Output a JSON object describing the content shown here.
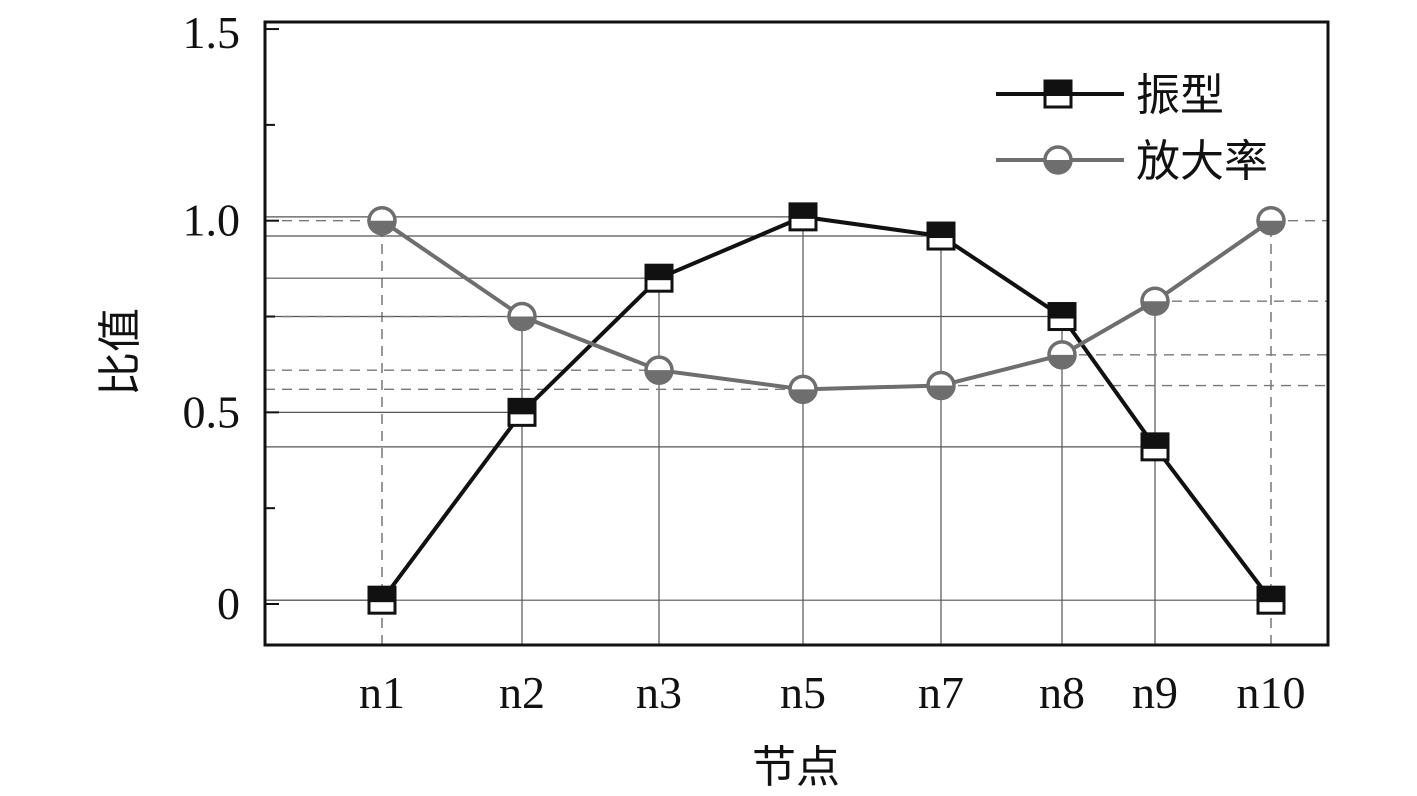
{
  "chart_data": {
    "type": "line",
    "title": "",
    "xlabel": "节点",
    "ylabel": "比值",
    "categories": [
      "n1",
      "n2",
      "n3",
      "n5",
      "n7",
      "n8",
      "n9",
      "n10"
    ],
    "ylim": [
      0,
      1.5
    ],
    "y_ticks": [
      "0",
      "0.5",
      "1.0",
      "1.5"
    ],
    "legend_position": "top-right",
    "series": [
      {
        "name": "振型",
        "values": [
          0.01,
          0.5,
          0.85,
          1.01,
          0.96,
          0.75,
          0.41,
          0.01
        ],
        "color": "#111111",
        "marker": "square"
      },
      {
        "name": "放大率",
        "values": [
          1.0,
          0.75,
          0.61,
          0.56,
          0.57,
          0.65,
          0.79,
          1.0
        ],
        "color": "#6e6e6e",
        "marker": "circle"
      }
    ]
  }
}
